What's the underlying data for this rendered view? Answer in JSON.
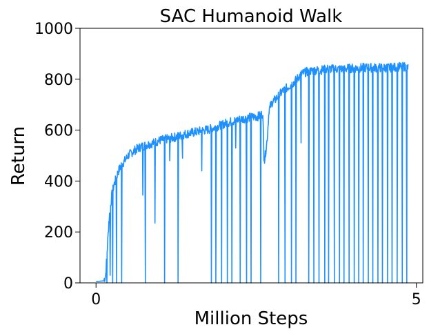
{
  "chart_data": {
    "type": "line",
    "title": "SAC Humanoid Walk",
    "xlabel": "Million Steps",
    "ylabel": "Return",
    "xlim": [
      -0.25,
      5.1
    ],
    "ylim": [
      0,
      1000
    ],
    "x_ticks": [
      0,
      5
    ],
    "y_ticks": [
      0,
      200,
      400,
      600,
      800,
      1000
    ],
    "grid": false,
    "legend": "none",
    "series": [
      {
        "color": "#1e90ff",
        "envelope": {
          "x": [
            0,
            0.12,
            0.15,
            0.18,
            0.2,
            0.22,
            0.25,
            0.28,
            0.3,
            0.33,
            0.36,
            0.4,
            0.45,
            0.5,
            0.6,
            0.7,
            0.8,
            0.9,
            1.0,
            1.2,
            1.4,
            1.6,
            1.8,
            2.0,
            2.2,
            2.4,
            2.55,
            2.6,
            2.63,
            2.67,
            2.7,
            2.75,
            2.8,
            2.9,
            3.0,
            3.1,
            3.2,
            3.3,
            3.4,
            3.5,
            3.6,
            3.8,
            4.0,
            4.2,
            4.4,
            4.6,
            4.8,
            4.87
          ],
          "y": [
            5,
            8,
            30,
            150,
            240,
            290,
            350,
            385,
            400,
            425,
            445,
            465,
            480,
            500,
            520,
            535,
            543,
            550,
            560,
            570,
            585,
            595,
            605,
            625,
            640,
            650,
            655,
            665,
            480,
            560,
            680,
            710,
            720,
            750,
            770,
            790,
            820,
            830,
            835,
            835,
            840,
            840,
            843,
            845,
            845,
            845,
            850,
            845
          ],
          "noise": 18
        },
        "dropouts": [
          {
            "x": 0.17,
            "y": 0
          },
          {
            "x": 0.22,
            "y": 30
          },
          {
            "x": 0.26,
            "y": 0
          },
          {
            "x": 0.32,
            "y": 0
          },
          {
            "x": 0.4,
            "y": 0
          },
          {
            "x": 0.73,
            "y": 345
          },
          {
            "x": 0.77,
            "y": 0
          },
          {
            "x": 0.92,
            "y": 235
          },
          {
            "x": 1.07,
            "y": 0
          },
          {
            "x": 1.15,
            "y": 480
          },
          {
            "x": 1.28,
            "y": 0
          },
          {
            "x": 1.35,
            "y": 490
          },
          {
            "x": 1.65,
            "y": 440
          },
          {
            "x": 1.8,
            "y": 0
          },
          {
            "x": 1.87,
            "y": 0
          },
          {
            "x": 1.96,
            "y": 0
          },
          {
            "x": 2.05,
            "y": 0
          },
          {
            "x": 2.12,
            "y": 0
          },
          {
            "x": 2.18,
            "y": 530
          },
          {
            "x": 2.25,
            "y": 0
          },
          {
            "x": 2.35,
            "y": 0
          },
          {
            "x": 2.42,
            "y": 0
          },
          {
            "x": 2.57,
            "y": 0
          },
          {
            "x": 2.62,
            "y": 480
          },
          {
            "x": 2.85,
            "y": 0
          },
          {
            "x": 2.95,
            "y": 0
          },
          {
            "x": 3.05,
            "y": 0
          },
          {
            "x": 3.12,
            "y": 0
          },
          {
            "x": 3.2,
            "y": 550
          },
          {
            "x": 3.32,
            "y": 0
          },
          {
            "x": 3.4,
            "y": 0
          },
          {
            "x": 3.48,
            "y": 0
          },
          {
            "x": 3.57,
            "y": 0
          },
          {
            "x": 3.63,
            "y": 0
          },
          {
            "x": 3.72,
            "y": 0
          },
          {
            "x": 3.8,
            "y": 0
          },
          {
            "x": 3.87,
            "y": 0
          },
          {
            "x": 3.95,
            "y": 0
          },
          {
            "x": 4.03,
            "y": 0
          },
          {
            "x": 4.1,
            "y": 0
          },
          {
            "x": 4.17,
            "y": 0
          },
          {
            "x": 4.25,
            "y": 0
          },
          {
            "x": 4.32,
            "y": 0
          },
          {
            "x": 4.4,
            "y": 0
          },
          {
            "x": 4.47,
            "y": 0
          },
          {
            "x": 4.55,
            "y": 0
          },
          {
            "x": 4.62,
            "y": 0
          },
          {
            "x": 4.7,
            "y": 0
          },
          {
            "x": 4.78,
            "y": 0
          },
          {
            "x": 4.85,
            "y": 0
          }
        ]
      }
    ]
  }
}
